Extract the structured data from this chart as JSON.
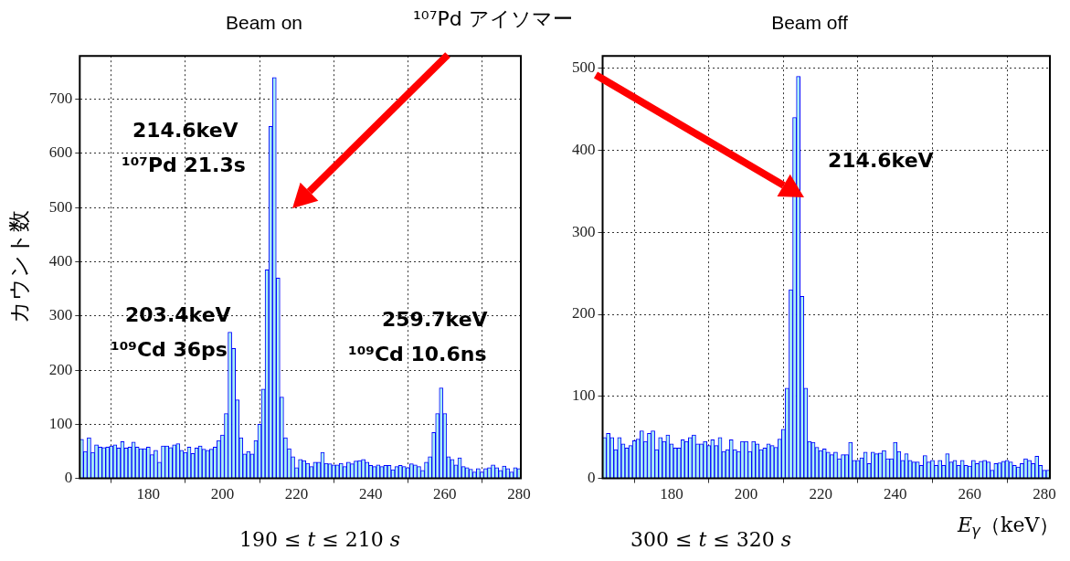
{
  "chart_data": [
    {
      "type": "histogram",
      "title": "Beam on",
      "ylabel": "カウント数",
      "color": "#aaf0f4",
      "bins": [
        161.5,
        162.5,
        163.5,
        164.5,
        165.5,
        166.5,
        167.5,
        168.5,
        169.5,
        170.5,
        171.5,
        172.5,
        173.5,
        174.5,
        175.5,
        176.5,
        177.5,
        178.5,
        179.5,
        180.5,
        181.5,
        182.5,
        183.5,
        184.5,
        185.5,
        186.5,
        187.5,
        188.5,
        189.5,
        190.5,
        191.5,
        192.5,
        193.5,
        194.5,
        195.5,
        196.5,
        197.5,
        198.5,
        199.5,
        200.5,
        201.5,
        202.5,
        203.5,
        204.5,
        205.5,
        206.5,
        207.5,
        208.5,
        209.5,
        210.5,
        211.5,
        212.5,
        213.5,
        214.5,
        215.5,
        216.5,
        217.5,
        218.5,
        219.5,
        220.5,
        221.5,
        222.5,
        223.5,
        224.5,
        225.5,
        226.5,
        227.5,
        228.5,
        229.5,
        230.5,
        231.5,
        232.5,
        233.5,
        234.5,
        235.5,
        236.5,
        237.5,
        238.5,
        239.5,
        240.5,
        241.5,
        242.5,
        243.5,
        244.5,
        245.5,
        246.5,
        247.5,
        248.5,
        249.5,
        250.5,
        251.5,
        252.5,
        253.5,
        254.5,
        255.5,
        256.5,
        257.5,
        258.5,
        259.5,
        260.5,
        261.5,
        262.5,
        263.5,
        264.5,
        265.5,
        266.5,
        267.5,
        268.5,
        269.5,
        270.5,
        271.5,
        272.5,
        273.5,
        274.5,
        275.5,
        276.5,
        277.5,
        278.5,
        279.5,
        280.5
      ],
      "values": [
        72,
        50,
        75,
        48,
        62,
        58,
        57,
        58,
        60,
        62,
        56,
        68,
        56,
        58,
        67,
        58,
        55,
        55,
        58,
        44,
        52,
        30,
        60,
        60,
        57,
        62,
        64,
        52,
        48,
        58,
        46,
        56,
        60,
        54,
        52,
        54,
        58,
        70,
        80,
        120,
        270,
        240,
        145,
        75,
        45,
        50,
        45,
        70,
        100,
        165,
        385,
        650,
        740,
        370,
        150,
        75,
        55,
        40,
        20,
        35,
        33,
        28,
        22,
        30,
        30,
        48,
        28,
        27,
        25,
        25,
        28,
        22,
        30,
        27,
        32,
        33,
        35,
        30,
        24,
        22,
        25,
        22,
        24,
        24,
        16,
        22,
        24,
        22,
        20,
        27,
        25,
        22,
        15,
        30,
        40,
        85,
        120,
        167,
        120,
        40,
        35,
        25,
        38,
        22,
        20,
        17,
        12,
        18,
        12,
        18,
        20,
        25,
        20,
        15,
        23,
        18,
        12,
        20,
        18
      ],
      "xlim": [
        161.5,
        280.5
      ],
      "xticks": [
        180,
        200,
        220,
        240,
        260,
        280
      ],
      "ylim": [
        0,
        780
      ],
      "yticks": [
        0,
        100,
        200,
        300,
        400,
        500,
        600,
        700
      ],
      "grid": true,
      "annotations": [
        "214.6keV",
        "¹⁰⁷Pd 21.3s",
        "203.4keV",
        "¹⁰⁹Cd 36ps",
        "259.7keV",
        "¹⁰⁹Cd 10.6ns",
        "190 ≤ 𝑡 ≤ 210 𝑠",
        "¹⁰⁷Pd アイソマー"
      ]
    },
    {
      "type": "histogram",
      "title": "Beam off",
      "xlabel": "𝐸$_{𝛾}$（keV）",
      "color": "#aaf0f4",
      "bins": [
        161.5,
        162.5,
        163.5,
        164.5,
        165.5,
        166.5,
        167.5,
        168.5,
        169.5,
        170.5,
        171.5,
        172.5,
        173.5,
        174.5,
        175.5,
        176.5,
        177.5,
        178.5,
        179.5,
        180.5,
        181.5,
        182.5,
        183.5,
        184.5,
        185.5,
        186.5,
        187.5,
        188.5,
        189.5,
        190.5,
        191.5,
        192.5,
        193.5,
        194.5,
        195.5,
        196.5,
        197.5,
        198.5,
        199.5,
        200.5,
        201.5,
        202.5,
        203.5,
        204.5,
        205.5,
        206.5,
        207.5,
        208.5,
        209.5,
        210.5,
        211.5,
        212.5,
        213.5,
        214.5,
        215.5,
        216.5,
        217.5,
        218.5,
        219.5,
        220.5,
        221.5,
        222.5,
        223.5,
        224.5,
        225.5,
        226.5,
        227.5,
        228.5,
        229.5,
        230.5,
        231.5,
        232.5,
        233.5,
        234.5,
        235.5,
        236.5,
        237.5,
        238.5,
        239.5,
        240.5,
        241.5,
        242.5,
        243.5,
        244.5,
        245.5,
        246.5,
        247.5,
        248.5,
        249.5,
        250.5,
        251.5,
        252.5,
        253.5,
        254.5,
        255.5,
        256.5,
        257.5,
        258.5,
        259.5,
        260.5,
        261.5,
        262.5,
        263.5,
        264.5,
        265.5,
        266.5,
        267.5,
        268.5,
        269.5,
        270.5,
        271.5,
        272.5,
        273.5,
        274.5,
        275.5,
        276.5,
        277.5,
        278.5,
        279.5,
        280.5,
        281.5
      ],
      "values": [
        50,
        55,
        50,
        35,
        50,
        42,
        37,
        40,
        46,
        48,
        58,
        45,
        55,
        58,
        35,
        50,
        45,
        53,
        42,
        37,
        37,
        47,
        45,
        50,
        53,
        42,
        42,
        45,
        40,
        47,
        40,
        50,
        33,
        35,
        47,
        35,
        33,
        45,
        45,
        33,
        45,
        42,
        35,
        37,
        42,
        40,
        38,
        48,
        60,
        110,
        230,
        440,
        490,
        222,
        110,
        45,
        44,
        38,
        34,
        36,
        32,
        29,
        32,
        24,
        29,
        29,
        44,
        22,
        22,
        25,
        32,
        18,
        32,
        30,
        31,
        34,
        24,
        24,
        44,
        33,
        22,
        30,
        22,
        20,
        20,
        16,
        28,
        20,
        22,
        16,
        22,
        16,
        30,
        20,
        22,
        16,
        22,
        16,
        15,
        22,
        18,
        21,
        22,
        20,
        10,
        18,
        19,
        21,
        22,
        20,
        16,
        14,
        18,
        24,
        22,
        18,
        27,
        16,
        10,
        10
      ],
      "xlim": [
        161.5,
        281.5
      ],
      "xticks": [
        180,
        200,
        220,
        240,
        260,
        280
      ],
      "ylim": [
        0,
        515
      ],
      "yticks": [
        0,
        100,
        200,
        300,
        400,
        500
      ],
      "grid": true,
      "annotations": [
        "214.6keV",
        "300 ≤ 𝑡 ≤ 320 𝑠"
      ]
    }
  ]
}
